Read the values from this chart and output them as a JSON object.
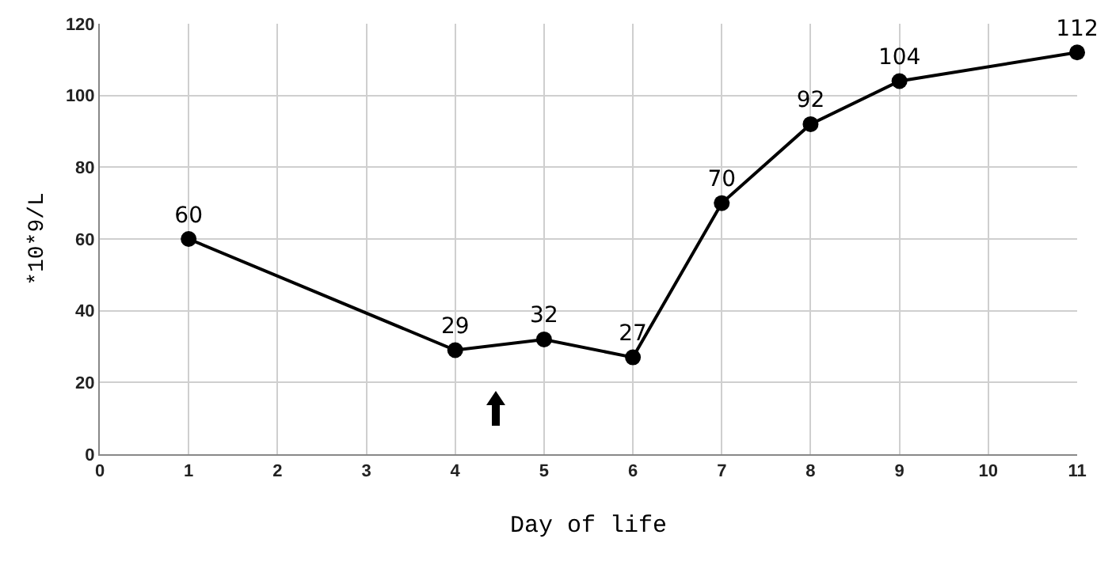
{
  "chart_data": {
    "type": "line",
    "xlabel": "Day of life",
    "ylabel": "*10*9/L",
    "x": [
      1,
      4,
      5,
      6,
      7,
      8,
      9,
      11
    ],
    "series": [
      {
        "color": "#000000",
        "values": [
          60,
          29,
          32,
          27,
          70,
          92,
          104,
          112
        ]
      }
    ],
    "xlim": [
      0,
      11
    ],
    "xticks": [
      0,
      1,
      2,
      3,
      4,
      5,
      6,
      7,
      8,
      9,
      10,
      11
    ],
    "ylim": [
      0,
      120
    ],
    "yticks": [
      0,
      20,
      40,
      60,
      80,
      100,
      120
    ],
    "grid": true,
    "marker": "circle",
    "line_style": "solid",
    "data_labels": true
  }
}
